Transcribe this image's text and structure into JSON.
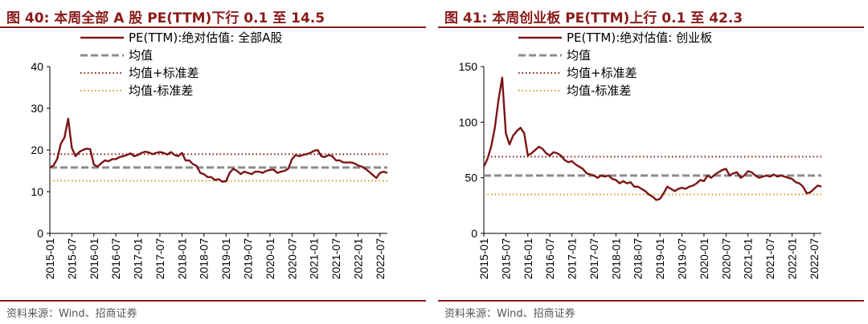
{
  "source_text": "资料来源：Wind、招商证券",
  "colors": {
    "accent": "#8b1a1a",
    "series": "#7b1416",
    "mean": "#8c8c8c",
    "plus_sd": "#8b1a1a",
    "minus_sd": "#c9a227"
  },
  "chart_data": [
    {
      "type": "line",
      "title": "图 40:  本周全部 A 股 PE(TTM)下行 0.1 至 14.5",
      "ylim": [
        0,
        40
      ],
      "yticks": [
        "0",
        "10",
        "20",
        "30",
        "40"
      ],
      "xlim": [
        "2015-01",
        "2022-09"
      ],
      "xticks": [
        "2015-01",
        "2015-07",
        "2016-01",
        "2016-07",
        "2017-01",
        "2017-07",
        "2018-01",
        "2018-07",
        "2019-01",
        "2019-07",
        "2020-01",
        "2020-07",
        "2021-01",
        "2021-07",
        "2022-01",
        "2022-07"
      ],
      "legend": {
        "position": "top",
        "items": [
          "PE(TTM):绝对估值: 全部A股",
          "均值",
          "均值+标准差",
          "均值-标准差"
        ]
      },
      "mean": 15.8,
      "mean_plus_sd": 19.0,
      "mean_minus_sd": 12.6,
      "series": [
        {
          "name": "PE(TTM):绝对估值: 全部A股",
          "x": [
            "2015-01",
            "2015-02",
            "2015-03",
            "2015-04",
            "2015-05",
            "2015-06",
            "2015-07",
            "2015-08",
            "2015-09",
            "2015-10",
            "2015-11",
            "2015-12",
            "2016-01",
            "2016-02",
            "2016-03",
            "2016-04",
            "2016-05",
            "2016-06",
            "2016-07",
            "2016-08",
            "2016-09",
            "2016-10",
            "2016-11",
            "2016-12",
            "2017-01",
            "2017-02",
            "2017-03",
            "2017-04",
            "2017-05",
            "2017-06",
            "2017-07",
            "2017-08",
            "2017-09",
            "2017-10",
            "2017-11",
            "2017-12",
            "2018-01",
            "2018-02",
            "2018-03",
            "2018-04",
            "2018-05",
            "2018-06",
            "2018-07",
            "2018-08",
            "2018-09",
            "2018-10",
            "2018-11",
            "2018-12",
            "2019-01",
            "2019-02",
            "2019-03",
            "2019-04",
            "2019-05",
            "2019-06",
            "2019-07",
            "2019-08",
            "2019-09",
            "2019-10",
            "2019-11",
            "2019-12",
            "2020-01",
            "2020-02",
            "2020-03",
            "2020-04",
            "2020-05",
            "2020-06",
            "2020-07",
            "2020-08",
            "2020-09",
            "2020-10",
            "2020-11",
            "2020-12",
            "2021-01",
            "2021-02",
            "2021-03",
            "2021-04",
            "2021-05",
            "2021-06",
            "2021-07",
            "2021-08",
            "2021-09",
            "2021-10",
            "2021-11",
            "2021-12",
            "2022-01",
            "2022-02",
            "2022-03",
            "2022-04",
            "2022-05",
            "2022-06",
            "2022-07",
            "2022-08",
            "2022-09"
          ],
          "values": [
            15.8,
            16.3,
            17.8,
            21.5,
            23.0,
            27.5,
            20.5,
            18.5,
            19.5,
            20.0,
            20.3,
            20.2,
            16.5,
            16.0,
            16.8,
            17.5,
            17.3,
            17.8,
            17.8,
            18.3,
            18.5,
            18.8,
            19.2,
            18.5,
            18.8,
            19.3,
            19.6,
            19.4,
            19.0,
            19.3,
            19.5,
            19.3,
            18.9,
            19.5,
            18.8,
            18.5,
            19.3,
            17.5,
            17.5,
            16.6,
            16.2,
            14.5,
            14.2,
            13.5,
            13.5,
            12.8,
            13.0,
            12.4,
            12.5,
            14.5,
            15.5,
            15.0,
            14.2,
            14.8,
            14.5,
            14.2,
            14.8,
            14.8,
            14.5,
            15.0,
            15.2,
            15.3,
            14.5,
            14.8,
            15.0,
            15.5,
            17.8,
            18.8,
            18.5,
            18.8,
            19.0,
            19.3,
            19.8,
            20.0,
            18.5,
            18.3,
            18.8,
            18.5,
            17.5,
            17.5,
            17.0,
            17.0,
            17.0,
            16.8,
            16.3,
            16.0,
            15.5,
            14.8,
            14.0,
            13.3,
            14.5,
            14.8,
            14.5
          ]
        }
      ]
    },
    {
      "type": "line",
      "title": "图 41:  本周创业板 PE(TTM)上行 0.1 至 42.3",
      "ylim": [
        0,
        150
      ],
      "yticks": [
        "0",
        "50",
        "100",
        "150"
      ],
      "xlim": [
        "2015-01",
        "2022-09"
      ],
      "xticks": [
        "2015-01",
        "2015-07",
        "2016-01",
        "2016-07",
        "2017-01",
        "2017-07",
        "2018-01",
        "2018-07",
        "2019-01",
        "2019-07",
        "2020-01",
        "2020-07",
        "2021-01",
        "2021-07",
        "2022-01",
        "2022-07"
      ],
      "legend": {
        "position": "top",
        "items": [
          "PE(TTM):绝对估值: 创业板",
          "均值",
          "均值+标准差",
          "均值-标准差"
        ]
      },
      "mean": 52.0,
      "mean_plus_sd": 69.0,
      "mean_minus_sd": 35.0,
      "series": [
        {
          "name": "PE(TTM):绝对估值: 创业板",
          "x": [
            "2015-01",
            "2015-02",
            "2015-03",
            "2015-04",
            "2015-05",
            "2015-06",
            "2015-07",
            "2015-08",
            "2015-09",
            "2015-10",
            "2015-11",
            "2015-12",
            "2016-01",
            "2016-02",
            "2016-03",
            "2016-04",
            "2016-05",
            "2016-06",
            "2016-07",
            "2016-08",
            "2016-09",
            "2016-10",
            "2016-11",
            "2016-12",
            "2017-01",
            "2017-02",
            "2017-03",
            "2017-04",
            "2017-05",
            "2017-06",
            "2017-07",
            "2017-08",
            "2017-09",
            "2017-10",
            "2017-11",
            "2017-12",
            "2018-01",
            "2018-02",
            "2018-03",
            "2018-04",
            "2018-05",
            "2018-06",
            "2018-07",
            "2018-08",
            "2018-09",
            "2018-10",
            "2018-11",
            "2018-12",
            "2019-01",
            "2019-02",
            "2019-03",
            "2019-04",
            "2019-05",
            "2019-06",
            "2019-07",
            "2019-08",
            "2019-09",
            "2019-10",
            "2019-11",
            "2019-12",
            "2020-01",
            "2020-02",
            "2020-03",
            "2020-04",
            "2020-05",
            "2020-06",
            "2020-07",
            "2020-08",
            "2020-09",
            "2020-10",
            "2020-11",
            "2020-12",
            "2021-01",
            "2021-02",
            "2021-03",
            "2021-04",
            "2021-05",
            "2021-06",
            "2021-07",
            "2021-08",
            "2021-09",
            "2021-10",
            "2021-11",
            "2021-12",
            "2022-01",
            "2022-02",
            "2022-03",
            "2022-04",
            "2022-05",
            "2022-06",
            "2022-07",
            "2022-08",
            "2022-09"
          ],
          "values": [
            60,
            67,
            78,
            95,
            120,
            140,
            90,
            80,
            88,
            92,
            95,
            90,
            70,
            72,
            75,
            78,
            76,
            72,
            70,
            73,
            72,
            70,
            66,
            64,
            65,
            62,
            60,
            58,
            54,
            53,
            52,
            50,
            52,
            51,
            52,
            49,
            48,
            45,
            47,
            45,
            46,
            42,
            42,
            40,
            38,
            35,
            33,
            30,
            31,
            36,
            42,
            40,
            38,
            40,
            41,
            40,
            42,
            43,
            45,
            48,
            47,
            52,
            50,
            53,
            55,
            57,
            58,
            52,
            54,
            55,
            50,
            52,
            56,
            55,
            52,
            50,
            51,
            52,
            51,
            53,
            51,
            52,
            51,
            50,
            49,
            46,
            45,
            42,
            36,
            37,
            40,
            43,
            42
          ]
        }
      ]
    }
  ]
}
